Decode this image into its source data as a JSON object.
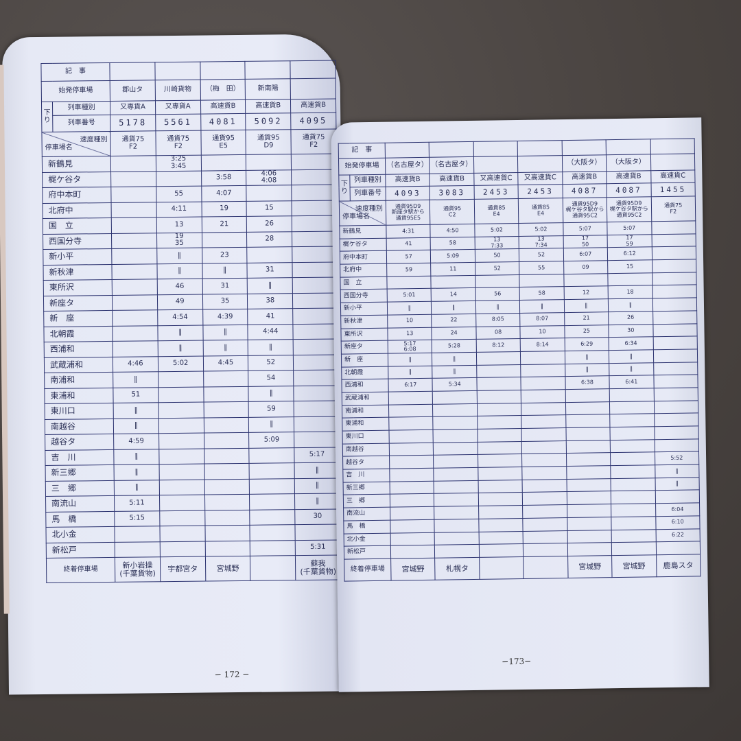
{
  "left_page": {
    "page_number": "− 172 −",
    "headers": {
      "notes": "記　事",
      "origin": "始発停車場",
      "direction": "下り",
      "train_type": "列車種別",
      "train_number": "列車番号",
      "speed_class": "速度種別",
      "station_name": "停車場名",
      "terminal": "終着停車場"
    },
    "columns": [
      {
        "origin": "郡山タ",
        "type": "又専貨A",
        "number": "5178",
        "speed": "通貨75\nF2",
        "terminal": "新小岩操\n(千葉貨物)"
      },
      {
        "origin": "川崎貨物",
        "type": "又専貨A",
        "number": "5561",
        "speed": "通貨75\nF2",
        "terminal": "宇都宮タ"
      },
      {
        "origin": "（梅　田）",
        "type": "高速貨B",
        "number": "4081",
        "speed": "通貨95\nE5",
        "terminal": "宮城野"
      },
      {
        "origin": "新南陽",
        "type": "高速貨B",
        "number": "5092",
        "speed": "通貨95\nD9",
        "terminal": ""
      },
      {
        "origin": "",
        "type": "高速貨B",
        "number": "4095",
        "speed": "通貨75\nF2",
        "terminal": "蘇我\n(千葉貨物)"
      }
    ],
    "stations": [
      {
        "name": "新鶴見",
        "times": [
          "",
          "3:25\n3:45",
          "",
          "",
          ""
        ]
      },
      {
        "name": "梶ケ谷タ",
        "times": [
          "",
          "",
          "3:58",
          "4:06\n4:08",
          ""
        ]
      },
      {
        "name": "府中本町",
        "times": [
          "",
          "55",
          "4:07",
          "",
          ""
        ]
      },
      {
        "name": "北府中",
        "times": [
          "",
          "4:11",
          "19",
          "15",
          ""
        ]
      },
      {
        "name": "国　立",
        "times": [
          "",
          "13",
          "21",
          "26",
          ""
        ]
      },
      {
        "name": "西国分寺",
        "times": [
          "",
          "19\n35",
          "",
          "28",
          ""
        ]
      },
      {
        "name": "新小平",
        "times": [
          "",
          "‖",
          "23",
          "",
          ""
        ]
      },
      {
        "name": "新秋津",
        "times": [
          "",
          "‖",
          "‖",
          "31",
          ""
        ]
      },
      {
        "name": "東所沢",
        "times": [
          "",
          "46",
          "31",
          "‖",
          ""
        ]
      },
      {
        "name": "新座タ",
        "times": [
          "",
          "49",
          "35",
          "38",
          ""
        ]
      },
      {
        "name": "新　座",
        "times": [
          "",
          "4:54",
          "4:39",
          "41",
          ""
        ]
      },
      {
        "name": "北朝霞",
        "times": [
          "",
          "‖",
          "‖",
          "4:44",
          ""
        ]
      },
      {
        "name": "西浦和",
        "times": [
          "",
          "‖",
          "‖",
          "‖",
          ""
        ]
      },
      {
        "name": "武蔵浦和",
        "times": [
          "4:46",
          "5:02",
          "4:45",
          "52",
          ""
        ]
      },
      {
        "name": "南浦和",
        "times": [
          "‖",
          "",
          "",
          "54",
          ""
        ]
      },
      {
        "name": "東浦和",
        "times": [
          "51",
          "",
          "",
          "‖",
          ""
        ]
      },
      {
        "name": "東川口",
        "times": [
          "‖",
          "",
          "",
          "59",
          ""
        ]
      },
      {
        "name": "南越谷",
        "times": [
          "‖",
          "",
          "",
          "‖",
          ""
        ]
      },
      {
        "name": "越谷タ",
        "times": [
          "4:59",
          "",
          "",
          "5:09",
          ""
        ]
      },
      {
        "name": "吉　川",
        "times": [
          "‖",
          "",
          "",
          "",
          "5:17"
        ]
      },
      {
        "name": "新三郷",
        "times": [
          "‖",
          "",
          "",
          "",
          "‖"
        ]
      },
      {
        "name": "三　郷",
        "times": [
          "‖",
          "",
          "",
          "",
          "‖"
        ]
      },
      {
        "name": "南流山",
        "times": [
          "5:11",
          "",
          "",
          "",
          "‖"
        ]
      },
      {
        "name": "馬　橋",
        "times": [
          "5:15",
          "",
          "",
          "",
          "30"
        ]
      },
      {
        "name": "北小金",
        "times": [
          "",
          "",
          "",
          "",
          ""
        ]
      },
      {
        "name": "新松戸",
        "times": [
          "",
          "",
          "",
          "",
          "5:31"
        ]
      }
    ]
  },
  "right_page": {
    "page_number": "−173−",
    "headers": {
      "notes": "記　事",
      "origin": "始発停車場",
      "direction": "下り",
      "train_type": "列車種別",
      "train_number": "列車番号",
      "speed_class": "速度種別",
      "station_name": "停車場名",
      "terminal": "終着停車場"
    },
    "columns": [
      {
        "origin": "（名古屋タ）",
        "type": "高速貨B",
        "number": "4093",
        "speed": "通貨95D9\n新座タ駅から\n通貨95E5",
        "terminal": "宮城野"
      },
      {
        "origin": "（名古屋タ）",
        "type": "高速貨B",
        "number": "3083",
        "speed": "通貨95\nC2",
        "terminal": "札幌タ"
      },
      {
        "origin": "",
        "type": "又高速貨C",
        "number": "2453",
        "speed": "通貨85\nE4",
        "terminal": ""
      },
      {
        "origin": "",
        "type": "又高速貨C",
        "number": "2453",
        "speed": "通貨85\nE4",
        "terminal": ""
      },
      {
        "origin": "（大阪タ）",
        "type": "高速貨B",
        "number": "4087",
        "speed": "通貨95D9\n梶ケ谷タ駅から\n通貨95C2",
        "terminal": "宮城野"
      },
      {
        "origin": "（大阪タ）",
        "type": "高速貨B",
        "number": "4087",
        "speed": "通貨95D9\n梶ケ谷タ駅から\n通貨95C2",
        "terminal": "宮城野"
      },
      {
        "origin": "",
        "type": "高速貨C",
        "number": "1455",
        "speed": "通貨75\nF2",
        "terminal": "鹿島スタ"
      }
    ],
    "stations": [
      {
        "name": "新鶴見",
        "times": [
          "4:31",
          "4:50",
          "5:02",
          "5:02",
          "5:07",
          "5:07",
          ""
        ]
      },
      {
        "name": "梶ケ谷タ",
        "times": [
          "41",
          "58",
          "13\n7:33",
          "13\n7:34",
          "17\n50",
          "17\n59",
          ""
        ]
      },
      {
        "name": "府中本町",
        "times": [
          "57",
          "5:09",
          "50",
          "52",
          "6:07",
          "6:12",
          ""
        ]
      },
      {
        "name": "北府中",
        "times": [
          "59",
          "11",
          "52",
          "55",
          "09",
          "15",
          ""
        ]
      },
      {
        "name": "国　立",
        "times": [
          "",
          "",
          "",
          "",
          "",
          "",
          ""
        ]
      },
      {
        "name": "西国分寺",
        "times": [
          "5:01",
          "14",
          "56",
          "58",
          "12",
          "18",
          ""
        ]
      },
      {
        "name": "新小平",
        "times": [
          "‖",
          "‖",
          "‖",
          "‖",
          "‖",
          "‖",
          ""
        ]
      },
      {
        "name": "新秋津",
        "times": [
          "10",
          "22",
          "8:05",
          "8:07",
          "21",
          "26",
          ""
        ]
      },
      {
        "name": "東所沢",
        "times": [
          "13",
          "24",
          "08",
          "10",
          "25",
          "30",
          ""
        ]
      },
      {
        "name": "新座タ",
        "times": [
          "5:17\n6:08",
          "5:28",
          "8:12",
          "8:14",
          "6:29",
          "6:34",
          ""
        ]
      },
      {
        "name": "新　座",
        "times": [
          "‖",
          "‖",
          "",
          "",
          "‖",
          "‖",
          ""
        ]
      },
      {
        "name": "北朝霞",
        "times": [
          "‖",
          "‖",
          "",
          "",
          "‖",
          "‖",
          ""
        ]
      },
      {
        "name": "西浦和",
        "times": [
          "6:17",
          "5:34",
          "",
          "",
          "6:38",
          "6:41",
          ""
        ]
      },
      {
        "name": "武蔵浦和",
        "times": [
          "",
          "",
          "",
          "",
          "",
          "",
          ""
        ]
      },
      {
        "name": "南浦和",
        "times": [
          "",
          "",
          "",
          "",
          "",
          "",
          ""
        ]
      },
      {
        "name": "東浦和",
        "times": [
          "",
          "",
          "",
          "",
          "",
          "",
          ""
        ]
      },
      {
        "name": "東川口",
        "times": [
          "",
          "",
          "",
          "",
          "",
          "",
          ""
        ]
      },
      {
        "name": "南越谷",
        "times": [
          "",
          "",
          "",
          "",
          "",
          "",
          ""
        ]
      },
      {
        "name": "越谷タ",
        "times": [
          "",
          "",
          "",
          "",
          "",
          "",
          "5:52"
        ]
      },
      {
        "name": "吉　川",
        "times": [
          "",
          "",
          "",
          "",
          "",
          "",
          "‖"
        ]
      },
      {
        "name": "新三郷",
        "times": [
          "",
          "",
          "",
          "",
          "",
          "",
          "‖"
        ]
      },
      {
        "name": "三　郷",
        "times": [
          "",
          "",
          "",
          "",
          "",
          "",
          ""
        ]
      },
      {
        "name": "南流山",
        "times": [
          "",
          "",
          "",
          "",
          "",
          "",
          "6:04"
        ]
      },
      {
        "name": "馬　橋",
        "times": [
          "",
          "",
          "",
          "",
          "",
          "",
          "6:10"
        ]
      },
      {
        "name": "北小金",
        "times": [
          "",
          "",
          "",
          "",
          "",
          "",
          "6:22"
        ]
      },
      {
        "name": "新松戸",
        "times": [
          "",
          "",
          "",
          "",
          "",
          "",
          ""
        ]
      }
    ]
  }
}
